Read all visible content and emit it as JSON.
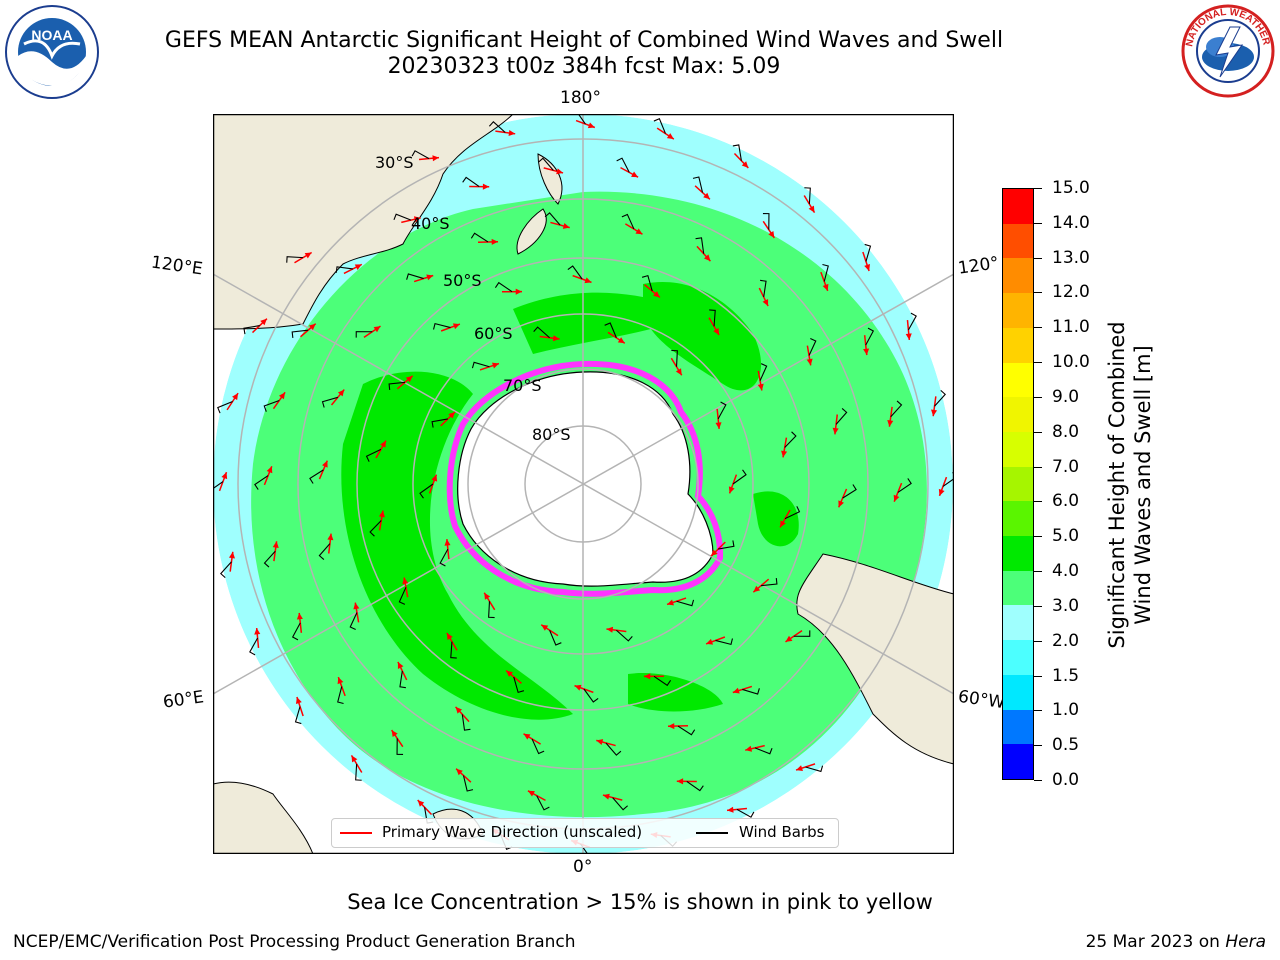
{
  "header": {
    "title_line1": "GEFS MEAN Antarctic Significant Height of Combined Wind Waves and Swell",
    "title_line2": "20230323 t00z 384h fcst   Max: 5.09"
  },
  "map": {
    "projection": "south polar stereographic",
    "latitude_labels": [
      "30°S",
      "40°S",
      "50°S",
      "60°S",
      "70°S",
      "80°S"
    ],
    "longitude_labels": {
      "top": "180°",
      "bottom": "0°",
      "upper_left": "120°E",
      "lower_left": "60°E",
      "upper_right": "120°",
      "lower_right": "60°W"
    },
    "colors": {
      "land": "#efebda",
      "antarctica": "#ffffff",
      "band_2_3": "#9ffffe",
      "band_3_4": "#4cff79",
      "band_4_5": "#00e900",
      "sea_ice": "#ff33ff",
      "grid": "#b4b4b4",
      "wave_arrow": "#ff0000",
      "wind_barb": "#000000"
    }
  },
  "legend": {
    "primary_wave_label": "Primary Wave Direction (unscaled)",
    "wind_barbs_label": "Wind Barbs"
  },
  "colorbar": {
    "title_line1": "Significant Height of Combined",
    "title_line2": "Wind Waves and Swell [m]",
    "ticks": [
      "0.0",
      "0.5",
      "1.0",
      "1.5",
      "2.0",
      "3.0",
      "4.0",
      "5.0",
      "6.0",
      "7.0",
      "8.0",
      "9.0",
      "10.0",
      "11.0",
      "12.0",
      "13.0",
      "14.0",
      "15.0"
    ],
    "colors": [
      "#0000ff",
      "#0078ff",
      "#00e8ff",
      "#4cffff",
      "#9ffffe",
      "#4cff79",
      "#00e900",
      "#5af500",
      "#a6f500",
      "#d7ff00",
      "#f0f500",
      "#ffff00",
      "#ffd200",
      "#ffb400",
      "#ff8c00",
      "#ff4e00",
      "#ff0000"
    ]
  },
  "footer": {
    "note": "Sea Ice Concentration > 15% is shown in pink to yellow",
    "left": "NCEP/EMC/Verification Post Processing Product Generation Branch",
    "right_date": "25 Mar 2023 on ",
    "right_host": "Hera"
  },
  "logos": {
    "noaa_text": "NOAA",
    "nws_text": "NATIONAL WEATHER SERVICE"
  }
}
